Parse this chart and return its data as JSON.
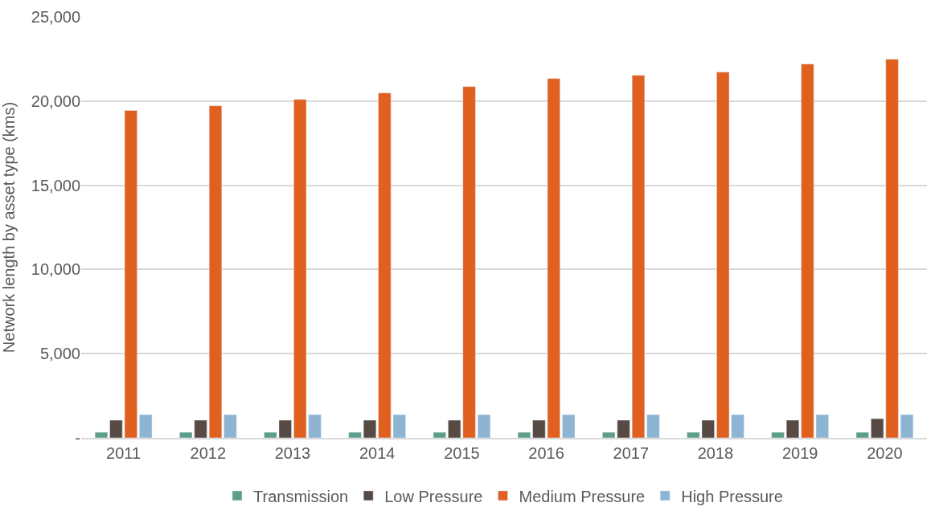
{
  "chart_data": {
    "type": "bar",
    "ylabel": "Network length by asset type (kms)",
    "categories": [
      "2011",
      "2012",
      "2013",
      "2014",
      "2015",
      "2016",
      "2017",
      "2018",
      "2019",
      "2020"
    ],
    "series": [
      {
        "name": "Transmission",
        "color": "#5d9e8a",
        "values": [
          330,
          330,
          330,
          330,
          330,
          330,
          330,
          330,
          330,
          330
        ]
      },
      {
        "name": "Low Pressure",
        "color": "#574a43",
        "values": [
          1050,
          1050,
          1050,
          1050,
          1050,
          1050,
          1050,
          1050,
          1050,
          1140
        ]
      },
      {
        "name": "Medium Pressure",
        "color": "#e0601f",
        "values": [
          19440,
          19720,
          20100,
          20480,
          20860,
          21340,
          21530,
          21720,
          22200,
          22480
        ]
      },
      {
        "name": "High Pressure",
        "color": "#8db4d2",
        "values": [
          1380,
          1380,
          1380,
          1380,
          1380,
          1380,
          1380,
          1380,
          1380,
          1380
        ]
      }
    ],
    "ylim": [
      0,
      25000
    ],
    "yticks": [
      {
        "value": 0,
        "label": "-"
      },
      {
        "value": 5000,
        "label": "5,000"
      },
      {
        "value": 10000,
        "label": "10,000"
      },
      {
        "value": 15000,
        "label": "15,000"
      },
      {
        "value": 20000,
        "label": "20,000"
      },
      {
        "value": 25000,
        "label": "25,000"
      }
    ],
    "grid": "y",
    "legend": "bottom"
  }
}
